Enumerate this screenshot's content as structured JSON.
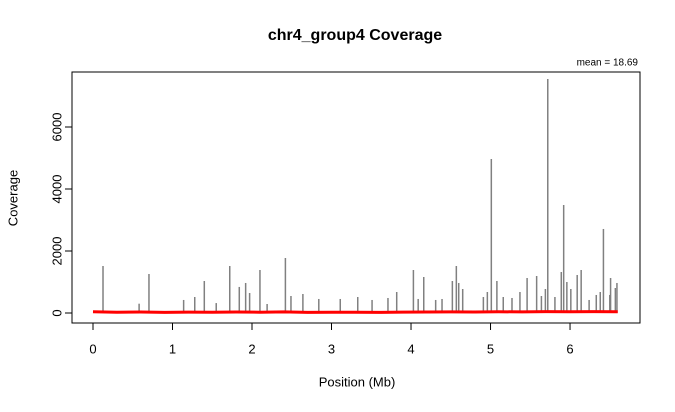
{
  "chart_data": {
    "type": "spike",
    "title": "chr4_group4 Coverage",
    "x_label": "Position (Mb)",
    "y_label": "Coverage",
    "annotation": "mean =  18.69",
    "annotation_color": "#ff0000",
    "xlim": [
      -0.264,
      6.88
    ],
    "ylim": [
      -323,
      7774
    ],
    "xticks": [
      0,
      1,
      2,
      3,
      4,
      5,
      6
    ],
    "yticks": [
      0,
      2000,
      4000,
      6000
    ],
    "series": [
      {
        "color": "#808080",
        "style": "spike",
        "x": [
          0.126,
          0.58,
          0.704,
          1.14,
          1.28,
          1.4,
          1.55,
          1.72,
          1.84,
          1.92,
          1.97,
          2.1,
          2.19,
          2.42,
          2.49,
          2.64,
          2.84,
          3.11,
          3.33,
          3.51,
          3.71,
          3.82,
          4.03,
          4.09,
          4.16,
          4.31,
          4.39,
          4.52,
          4.57,
          4.6,
          4.65,
          4.91,
          4.96,
          5.01,
          5.08,
          5.16,
          5.27,
          5.37,
          5.46,
          5.58,
          5.64,
          5.69,
          5.72,
          5.81,
          5.89,
          5.92,
          5.96,
          6.01,
          6.09,
          6.14,
          6.24,
          6.33,
          6.38,
          6.42,
          6.5,
          6.51,
          6.57,
          6.59
        ],
        "values": [
          1516,
          300,
          1258,
          420,
          516,
          1032,
          320,
          1516,
          840,
          968,
          645,
          1387,
          290,
          1774,
          548,
          613,
          452,
          452,
          516,
          420,
          484,
          677,
          1387,
          452,
          1161,
          420,
          452,
          1032,
          1516,
          968,
          774,
          516,
          677,
          4968,
          1032,
          516,
          484,
          677,
          1129,
          1193,
          548,
          774,
          7548,
          516,
          1322,
          3484,
          1000,
          774,
          1226,
          1387,
          420,
          581,
          677,
          2710,
          581,
          1129,
          806,
          968
        ]
      },
      {
        "color": "#ff0000",
        "style": "line",
        "x": [
          0,
          0.3,
          0.6,
          0.9,
          1.2,
          1.5,
          1.8,
          2.1,
          2.4,
          2.7,
          3.0,
          3.3,
          3.6,
          3.9,
          4.2,
          4.5,
          4.8,
          5.1,
          5.4,
          5.7,
          6.0,
          6.3,
          6.6
        ],
        "values": [
          40,
          25,
          30,
          20,
          28,
          22,
          30,
          25,
          35,
          20,
          22,
          25,
          20,
          28,
          30,
          35,
          30,
          40,
          35,
          45,
          40,
          45,
          40
        ]
      }
    ]
  }
}
